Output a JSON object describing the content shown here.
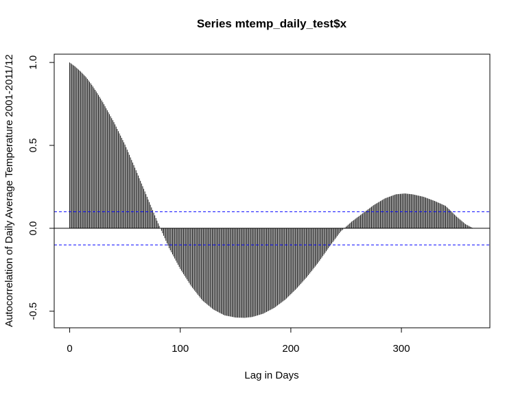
{
  "chart_data": {
    "type": "bar",
    "title": "Series  mtemp_daily_test$x",
    "xlabel": "Lag in Days",
    "ylabel": "Autocorrelation of Daily Average Temperature 2001-2011/12",
    "xlim": [
      -14,
      380
    ],
    "ylim": [
      -0.6,
      1.05
    ],
    "x_ticks": [
      0,
      100,
      200,
      300
    ],
    "x_tick_labels": [
      "0",
      "100",
      "200",
      "300"
    ],
    "y_ticks": [
      -0.5,
      0.0,
      0.5,
      1.0
    ],
    "y_tick_labels": [
      "-0.5",
      "0.0",
      "0.5",
      "1.0"
    ],
    "confidence_bounds": [
      0.1,
      -0.1
    ],
    "max_lag": 365,
    "acf_keypoints": {
      "lag": [
        0,
        5,
        10,
        15,
        20,
        25,
        30,
        40,
        50,
        60,
        70,
        80,
        90,
        100,
        110,
        120,
        130,
        140,
        150,
        158,
        165,
        175,
        185,
        195,
        205,
        215,
        225,
        235,
        245,
        255,
        265,
        275,
        285,
        295,
        303,
        310,
        320,
        330,
        340,
        350,
        358,
        365
      ],
      "value": [
        1.0,
        0.975,
        0.945,
        0.91,
        0.865,
        0.815,
        0.76,
        0.64,
        0.505,
        0.35,
        0.19,
        0.03,
        -0.12,
        -0.245,
        -0.35,
        -0.435,
        -0.49,
        -0.525,
        -0.538,
        -0.54,
        -0.535,
        -0.515,
        -0.48,
        -0.43,
        -0.365,
        -0.29,
        -0.205,
        -0.11,
        -0.02,
        0.04,
        0.09,
        0.14,
        0.18,
        0.205,
        0.21,
        0.205,
        0.19,
        0.165,
        0.135,
        0.07,
        0.025,
        0.0
      ]
    },
    "colors": {
      "bars": "#000000",
      "confidence": "#0000ff",
      "zero_line": "#000000",
      "frame": "#000000"
    },
    "grid": false,
    "legend": "none"
  }
}
